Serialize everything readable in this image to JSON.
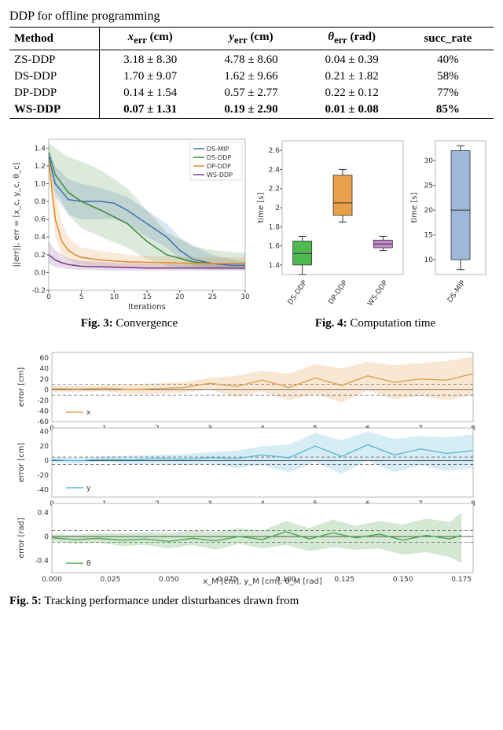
{
  "header_line": "DDP for offline programming",
  "table": {
    "columns": [
      "Method",
      "x_err (cm)",
      "y_err (cm)",
      "θ_err (rad)",
      "succ_rate"
    ],
    "rows": [
      {
        "method": "ZS-DDP",
        "x": "3.18 ± 8.30",
        "y": "4.78 ± 8.60",
        "t": "0.04 ± 0.39",
        "s": "40%",
        "bold": false
      },
      {
        "method": "DS-DDP",
        "x": "1.70 ± 9.07",
        "y": "1.62 ± 9.66",
        "t": "0.21 ± 1.82",
        "s": "58%",
        "bold": false
      },
      {
        "method": "DP-DDP",
        "x": "0.14 ± 1.54",
        "y": "0.57 ± 2.77",
        "t": "0.22 ± 0.12",
        "s": "77%",
        "bold": false
      },
      {
        "method": "WS-DDP",
        "x": "0.07 ± 1.31",
        "y": "0.19 ± 2.90",
        "t": "0.01 ± 0.08",
        "s": "85%",
        "bold": true
      }
    ]
  },
  "fig3": {
    "type": "line",
    "title": "Convergence",
    "caption_prefix": "Fig. 3:",
    "xlabel": "Iterations",
    "ylabel": "||err||, err = [x_c, y_c, θ_c]",
    "xlim": [
      0,
      30
    ],
    "xtick_step": 5,
    "ylim": [
      -0.2,
      1.5
    ],
    "ytick_step": 0.2,
    "background_color": "#ffffff",
    "grid_color": "#f0f0f0",
    "series": [
      {
        "name": "DS-MIP",
        "color": "#3b6fb6",
        "x": [
          0,
          1,
          3,
          5,
          8,
          10,
          12,
          15,
          18,
          20,
          22,
          25,
          28,
          30
        ],
        "y": [
          1.3,
          1.0,
          0.82,
          0.8,
          0.8,
          0.78,
          0.7,
          0.55,
          0.4,
          0.25,
          0.15,
          0.1,
          0.08,
          0.08
        ],
        "band_hi": [
          1.4,
          1.2,
          1.05,
          1.0,
          0.95,
          0.9,
          0.85,
          0.7,
          0.55,
          0.4,
          0.3,
          0.2,
          0.15,
          0.12
        ],
        "band_lo": [
          1.2,
          0.85,
          0.65,
          0.6,
          0.6,
          0.6,
          0.55,
          0.4,
          0.28,
          0.15,
          0.08,
          0.05,
          0.04,
          0.04
        ]
      },
      {
        "name": "DS-DDP",
        "color": "#3b8a3b",
        "x": [
          0,
          1,
          2,
          3,
          5,
          8,
          12,
          15,
          18,
          22,
          25,
          30
        ],
        "y": [
          1.35,
          1.1,
          1.0,
          0.9,
          0.8,
          0.7,
          0.55,
          0.35,
          0.2,
          0.12,
          0.1,
          0.1
        ],
        "band_hi": [
          1.45,
          1.4,
          1.35,
          1.3,
          1.25,
          1.15,
          0.95,
          0.7,
          0.45,
          0.3,
          0.25,
          0.22
        ],
        "band_lo": [
          1.2,
          0.9,
          0.8,
          0.65,
          0.5,
          0.4,
          0.28,
          0.15,
          0.08,
          0.04,
          0.03,
          0.03
        ]
      },
      {
        "name": "DP-DDP",
        "color": "#e08a2c",
        "x": [
          0,
          1,
          2,
          3,
          4,
          5,
          8,
          12,
          18,
          25,
          30
        ],
        "y": [
          1.25,
          0.6,
          0.35,
          0.25,
          0.2,
          0.17,
          0.14,
          0.12,
          0.11,
          0.1,
          0.1
        ],
        "band_hi": [
          1.35,
          0.9,
          0.55,
          0.4,
          0.32,
          0.28,
          0.24,
          0.2,
          0.18,
          0.17,
          0.17
        ],
        "band_lo": [
          1.1,
          0.4,
          0.2,
          0.14,
          0.11,
          0.09,
          0.07,
          0.06,
          0.05,
          0.05,
          0.05
        ]
      },
      {
        "name": "WS-DDP",
        "color": "#7a3b8a",
        "x": [
          0,
          1,
          2,
          3,
          5,
          10,
          15,
          20,
          25,
          30
        ],
        "y": [
          0.2,
          0.14,
          0.11,
          0.09,
          0.07,
          0.06,
          0.05,
          0.05,
          0.05,
          0.05
        ],
        "band_hi": [
          0.35,
          0.25,
          0.2,
          0.16,
          0.13,
          0.11,
          0.1,
          0.09,
          0.09,
          0.09
        ],
        "band_lo": [
          0.1,
          0.06,
          0.05,
          0.04,
          0.03,
          0.02,
          0.02,
          0.02,
          0.02,
          0.02
        ]
      }
    ]
  },
  "fig4": {
    "type": "boxplot",
    "title": "Computation time",
    "caption_prefix": "Fig. 4:",
    "left": {
      "ylabel": "time [s]",
      "ylim": [
        1.3,
        2.7
      ],
      "ytick_step": 0.2,
      "boxes": [
        {
          "label": "DS-DDP",
          "color": "#4fb84f",
          "q1": 1.4,
          "q3": 1.65,
          "med": 1.52,
          "lo": 1.3,
          "hi": 1.7
        },
        {
          "label": "DP-DDP",
          "color": "#e8a14a",
          "q1": 1.92,
          "q3": 2.34,
          "med": 2.05,
          "lo": 1.85,
          "hi": 2.4
        },
        {
          "label": "WS-DDP",
          "color": "#c88ad1",
          "q1": 1.58,
          "q3": 1.66,
          "med": 1.62,
          "lo": 1.55,
          "hi": 1.7
        }
      ]
    },
    "right": {
      "ylabel": "time [s]",
      "ylim": [
        7,
        34
      ],
      "ytick_step": 5,
      "boxes": [
        {
          "label": "DS-MIP",
          "color": "#9db8d9",
          "q1": 10.0,
          "q3": 32.0,
          "med": 20.0,
          "lo": 8.0,
          "hi": 33.0
        }
      ]
    }
  },
  "fig5": {
    "type": "line",
    "caption_prefix": "Fig. 5:",
    "title_partial": "Tracking performance under disturbances drawn from",
    "xlabel_top": "",
    "xlabel_bottom": "x_M [cm], y_M [cm], θ_M [rad]",
    "panels": [
      {
        "name": "x",
        "ylabel": "error [cm]",
        "color": "#e0a050",
        "ylim": [
          -60,
          70
        ],
        "ytick_step": 20,
        "xlim": [
          0,
          8
        ],
        "xtick_step": 1,
        "x": [
          0,
          0.5,
          1,
          1.5,
          2,
          2.5,
          3,
          3.5,
          4,
          4.5,
          5,
          5.5,
          6,
          6.5,
          7,
          7.5,
          8
        ],
        "y": [
          2,
          1,
          3,
          0,
          2,
          4,
          12,
          6,
          18,
          4,
          22,
          8,
          26,
          14,
          20,
          18,
          30
        ],
        "band_hi": [
          8,
          7,
          9,
          10,
          12,
          14,
          22,
          26,
          36,
          30,
          48,
          40,
          52,
          46,
          50,
          54,
          62
        ],
        "band_lo": [
          -4,
          -5,
          -3,
          -8,
          -8,
          -6,
          0,
          -14,
          -4,
          -20,
          -8,
          -24,
          -2,
          -18,
          -12,
          -20,
          -10
        ],
        "dashed": [
          10,
          -10
        ]
      },
      {
        "name": "y",
        "ylabel": "error [cm]",
        "color": "#5fb8d9",
        "ylim": [
          -50,
          45
        ],
        "ytick_step": 20,
        "xlim": [
          0,
          8
        ],
        "xtick_step": 1,
        "x": [
          0,
          0.5,
          1,
          1.5,
          2,
          2.5,
          3,
          3.5,
          4,
          4.5,
          5,
          5.5,
          6,
          6.5,
          7,
          7.5,
          8
        ],
        "y": [
          1,
          0,
          2,
          1,
          3,
          2,
          4,
          3,
          8,
          4,
          20,
          6,
          22,
          8,
          16,
          10,
          14
        ],
        "band_hi": [
          5,
          4,
          6,
          7,
          8,
          9,
          12,
          14,
          20,
          22,
          38,
          28,
          40,
          30,
          34,
          32,
          36
        ],
        "band_lo": [
          -3,
          -4,
          -2,
          -5,
          -4,
          -6,
          -4,
          -10,
          -6,
          -16,
          -2,
          -18,
          0,
          -16,
          -6,
          -14,
          -10
        ],
        "dashed": [
          5,
          -5
        ]
      },
      {
        "name": "θ",
        "ylabel": "error [rad]",
        "color": "#4fa84f",
        "ylim": [
          -0.6,
          0.55
        ],
        "ytick_step": 0.4,
        "xlim": [
          0,
          0.18
        ],
        "xtick_step": 0.025,
        "xtick_fmt": "3",
        "x": [
          0,
          0.01,
          0.02,
          0.03,
          0.04,
          0.05,
          0.06,
          0.07,
          0.08,
          0.09,
          0.1,
          0.11,
          0.12,
          0.13,
          0.14,
          0.15,
          0.16,
          0.17,
          0.175
        ],
        "y": [
          -0.02,
          -0.05,
          -0.03,
          -0.06,
          -0.04,
          -0.08,
          -0.03,
          -0.07,
          0.0,
          -0.05,
          0.08,
          -0.04,
          0.06,
          -0.02,
          0.04,
          -0.06,
          0.02,
          -0.04,
          0.02
        ],
        "band_hi": [
          0.04,
          0.03,
          0.06,
          0.05,
          0.08,
          0.06,
          0.1,
          0.08,
          0.14,
          0.1,
          0.26,
          0.14,
          0.28,
          0.18,
          0.26,
          0.2,
          0.3,
          0.24,
          0.4
        ],
        "band_lo": [
          -0.08,
          -0.12,
          -0.1,
          -0.16,
          -0.14,
          -0.2,
          -0.14,
          -0.22,
          -0.12,
          -0.2,
          -0.14,
          -0.24,
          -0.18,
          -0.22,
          -0.2,
          -0.3,
          -0.26,
          -0.34,
          -0.44
        ],
        "dashed": [
          0.1,
          -0.1
        ]
      }
    ]
  }
}
